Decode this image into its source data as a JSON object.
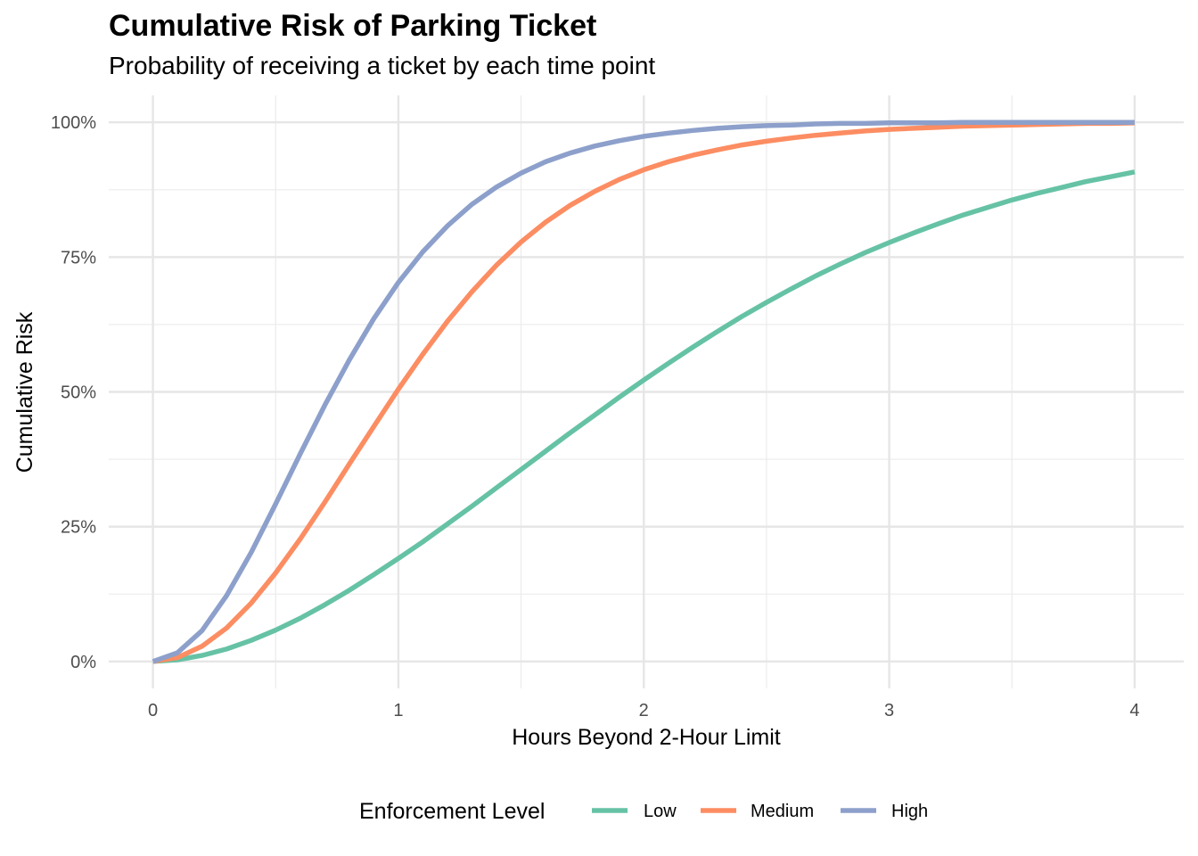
{
  "chart_data": {
    "type": "line",
    "title": "Cumulative Risk of Parking Ticket",
    "subtitle": "Probability of receiving a ticket by each time point",
    "xlabel": "Hours Beyond 2-Hour Limit",
    "ylabel": "Cumulative Risk",
    "xlim": [
      -0.18,
      4.2
    ],
    "ylim": [
      -0.05,
      1.05
    ],
    "x_ticks": [
      0,
      1,
      2,
      3,
      4
    ],
    "x_tick_labels": [
      "0",
      "1",
      "2",
      "3",
      "4"
    ],
    "y_ticks": [
      0,
      0.25,
      0.5,
      0.75,
      1.0
    ],
    "y_tick_labels": [
      "0%",
      "25%",
      "50%",
      "75%",
      "100%"
    ],
    "grid": true,
    "legend": {
      "title": "Enforcement Level",
      "position": "bottom"
    },
    "x": [
      0,
      0.1,
      0.2,
      0.3,
      0.4,
      0.5,
      0.6,
      0.7,
      0.8,
      0.9,
      1.0,
      1.1,
      1.2,
      1.3,
      1.4,
      1.5,
      1.6,
      1.7,
      1.8,
      1.9,
      2.0,
      2.1,
      2.2,
      2.3,
      2.4,
      2.5,
      2.6,
      2.7,
      2.8,
      2.9,
      3.0,
      3.1,
      3.2,
      3.3,
      3.4,
      3.5,
      3.6,
      3.7,
      3.8,
      3.9,
      4.0
    ],
    "series": [
      {
        "name": "Low",
        "color": "#66c2a5",
        "values": [
          0,
          0.003,
          0.011,
          0.023,
          0.039,
          0.058,
          0.08,
          0.105,
          0.132,
          0.161,
          0.191,
          0.222,
          0.255,
          0.288,
          0.322,
          0.356,
          0.39,
          0.424,
          0.457,
          0.49,
          0.522,
          0.553,
          0.583,
          0.612,
          0.64,
          0.666,
          0.691,
          0.715,
          0.737,
          0.758,
          0.777,
          0.795,
          0.812,
          0.828,
          0.842,
          0.856,
          0.868,
          0.879,
          0.89,
          0.899,
          0.908
        ]
      },
      {
        "name": "Medium",
        "color": "#fc8d62",
        "values": [
          0,
          0.007,
          0.028,
          0.062,
          0.108,
          0.164,
          0.227,
          0.295,
          0.366,
          0.436,
          0.505,
          0.57,
          0.631,
          0.686,
          0.735,
          0.778,
          0.815,
          0.846,
          0.872,
          0.894,
          0.912,
          0.927,
          0.939,
          0.949,
          0.958,
          0.965,
          0.971,
          0.976,
          0.98,
          0.984,
          0.987,
          0.989,
          0.991,
          0.993,
          0.994,
          0.995,
          0.996,
          0.997,
          0.998,
          0.998,
          0.999
        ]
      },
      {
        "name": "High",
        "color": "#8da0cb",
        "values": [
          0,
          0.016,
          0.057,
          0.122,
          0.202,
          0.292,
          0.385,
          0.475,
          0.559,
          0.636,
          0.703,
          0.76,
          0.808,
          0.848,
          0.88,
          0.906,
          0.927,
          0.943,
          0.956,
          0.966,
          0.974,
          0.98,
          0.985,
          0.989,
          0.992,
          0.994,
          0.995,
          0.997,
          0.998,
          0.998,
          0.999,
          0.999,
          0.999,
          1.0,
          1.0,
          1.0,
          1.0,
          1.0,
          1.0,
          1.0,
          1.0
        ]
      }
    ]
  }
}
